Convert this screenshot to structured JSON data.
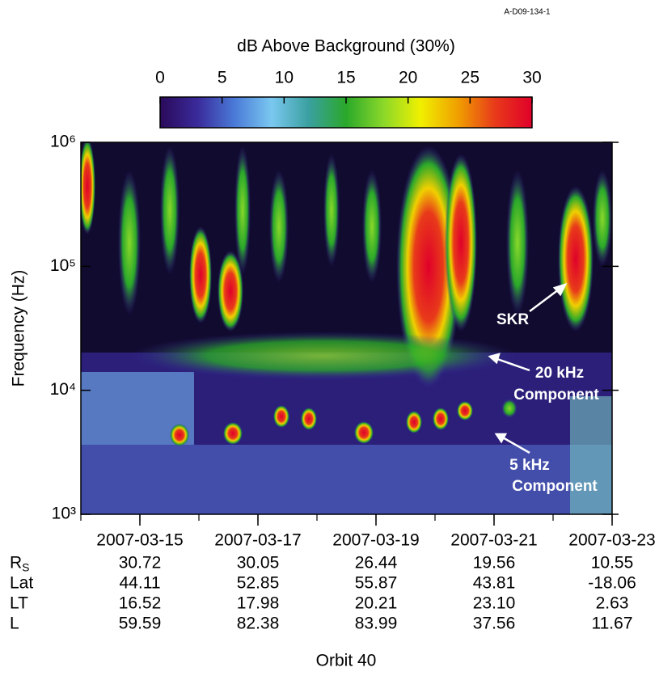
{
  "chart_data": {
    "type": "spectrogram",
    "figure_id": "A-D09-134-1",
    "colorbar": {
      "label": "dB Above Background (30%)",
      "lim": [
        0,
        30
      ],
      "ticks": [
        0,
        5,
        10,
        15,
        20,
        25,
        30
      ],
      "colormap": [
        "#2a0a5a",
        "#3a2a9a",
        "#4a7ad8",
        "#7ac8f0",
        "#3aa0a0",
        "#2aa82a",
        "#8ad82a",
        "#f0f000",
        "#f0a000",
        "#e83a1a",
        "#e0002a"
      ]
    },
    "ylabel": "Frequency (Hz)",
    "yscale": "log",
    "ylim": [
      1000,
      1000000
    ],
    "yticks": [
      {
        "value": 1000,
        "label": "10³"
      },
      {
        "value": 10000,
        "label": "10⁴"
      },
      {
        "value": 100000,
        "label": "10⁵"
      },
      {
        "value": 1000000,
        "label": "10⁶"
      }
    ],
    "xlim": [
      "2007-03-14",
      "2007-03-23"
    ],
    "xticks": [
      "2007-03-15",
      "2007-03-17",
      "2007-03-19",
      "2007-03-21",
      "2007-03-23"
    ],
    "xlabel": "Orbit 40",
    "ephemeris": [
      {
        "label": "R",
        "subscript": "S",
        "values": [
          "30.72",
          "30.05",
          "26.44",
          "19.56",
          "10.55"
        ]
      },
      {
        "label": "Lat",
        "values": [
          "44.11",
          "52.85",
          "55.87",
          "43.81",
          "-18.06"
        ]
      },
      {
        "label": "LT",
        "values": [
          "16.52",
          "17.98",
          "20.21",
          "23.10",
          "2.63"
        ]
      },
      {
        "label": "L",
        "values": [
          "59.59",
          "82.38",
          "83.99",
          "37.56",
          "11.67"
        ]
      }
    ],
    "annotations": [
      "SKR",
      "20 kHz",
      "Component",
      "5 kHz",
      "Component"
    ]
  }
}
